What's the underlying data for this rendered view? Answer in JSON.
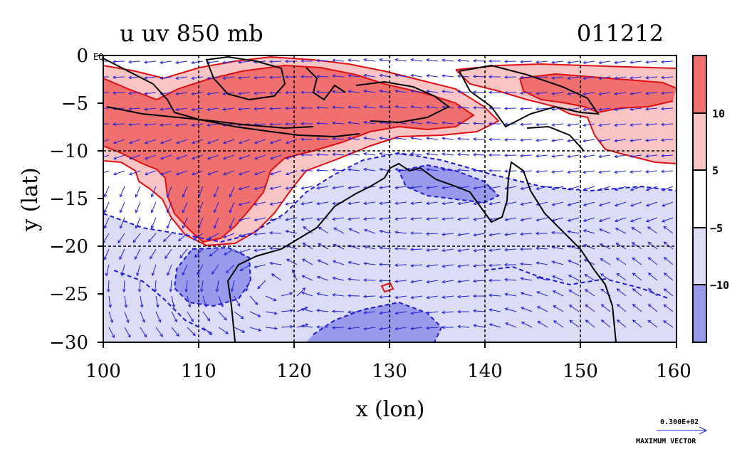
{
  "plot": {
    "title": "u uv 850 mb",
    "date": "011212",
    "xlabel": "x (lon)",
    "ylabel": "y (lat)",
    "eq_label": "EQ",
    "x_ticks": [
      "100",
      "110",
      "120",
      "130",
      "140",
      "150",
      "160"
    ],
    "y_ticks": [
      "0",
      "−5",
      "−10",
      "−15",
      "−20",
      "−25",
      "−30"
    ],
    "x_range": [
      100,
      160
    ],
    "y_range": [
      -30,
      0
    ]
  },
  "colorbar": {
    "labels": [
      "10",
      "5",
      "−5",
      "−10"
    ],
    "colors": [
      "#f07070",
      "#f8c4c4",
      "#ffffff",
      "#dcdcf6",
      "#9a9aec"
    ]
  },
  "legend": {
    "vector_value": "0.300E+02",
    "vector_label": "MAXIMUM VECTOR"
  },
  "colors": {
    "strong_positive": "#f07070",
    "weak_positive": "#f8c4c4",
    "weak_negative": "#dcdcf6",
    "strong_negative": "#9a9aec",
    "positive_contour": "#e01010",
    "negative_contour": "#1a1ad8",
    "vectors": "#2222dd",
    "coastline": "#000000",
    "grid": "#000000"
  }
}
